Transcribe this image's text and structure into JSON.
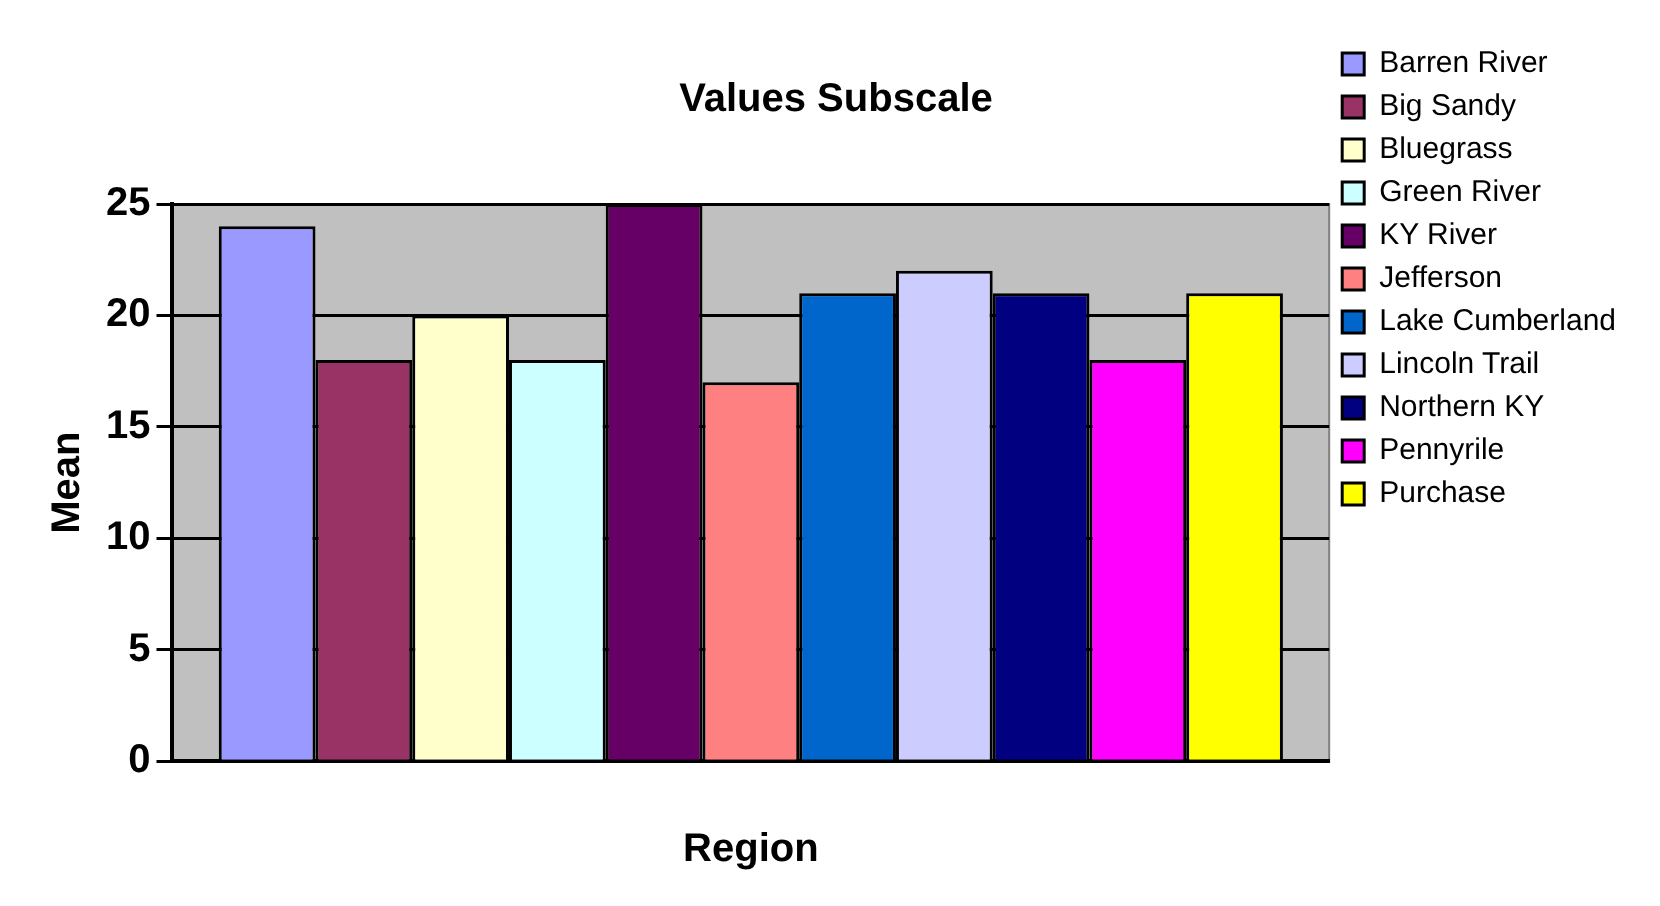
{
  "chart_data": {
    "type": "bar",
    "title": "Values Subscale",
    "xlabel": "Region",
    "ylabel": "Mean",
    "categories": [
      null
    ],
    "series": [
      {
        "name": "Barren River",
        "color": "#9999ff",
        "values": [
          24
        ]
      },
      {
        "name": "Big Sandy",
        "color": "#993366",
        "values": [
          18
        ]
      },
      {
        "name": "Bluegrass",
        "color": "#ffffcc",
        "values": [
          20
        ]
      },
      {
        "name": "Green River",
        "color": "#ccffff",
        "values": [
          18
        ]
      },
      {
        "name": "KY River",
        "color": "#660066",
        "values": [
          25
        ]
      },
      {
        "name": "Jefferson",
        "color": "#ff8080",
        "values": [
          17
        ]
      },
      {
        "name": "Lake Cumberland",
        "color": "#0066cc",
        "values": [
          21
        ]
      },
      {
        "name": "Lincoln Trail",
        "color": "#ccccff",
        "values": [
          22
        ]
      },
      {
        "name": "Northern KY",
        "color": "#000080",
        "values": [
          21
        ]
      },
      {
        "name": "Pennyrile",
        "color": "#ff00ff",
        "values": [
          18
        ]
      },
      {
        "name": "Purchase",
        "color": "#ffff00",
        "values": [
          21
        ]
      }
    ],
    "ylim": [
      0,
      25
    ],
    "yticks": [
      0,
      5,
      10,
      15,
      20,
      25
    ],
    "grid": "y",
    "legend": "right"
  }
}
